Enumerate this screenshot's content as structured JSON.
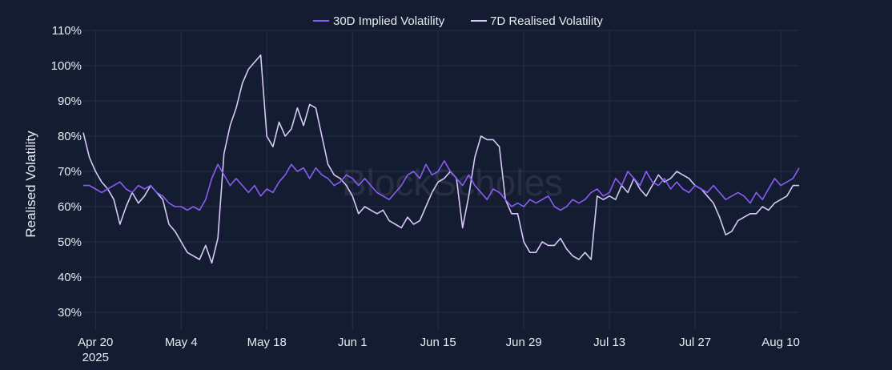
{
  "legend": {
    "series_1": "30D Implied Volatility",
    "series_2": "7D Realised Volatility"
  },
  "watermark": "BlockScholes",
  "chart_data": {
    "type": "line",
    "ylabel": "Realised Volatility",
    "xlabel": "",
    "ylim": [
      25,
      110
    ],
    "xlim": [
      "2025-04-18",
      "2025-08-13"
    ],
    "y_ticks": [
      30,
      40,
      50,
      60,
      70,
      80,
      90,
      100,
      110
    ],
    "y_tick_labels": [
      "30%",
      "40%",
      "50%",
      "60%",
      "70%",
      "80%",
      "90%",
      "100%",
      "110%"
    ],
    "x_ticks": [
      "2025-04-20",
      "2025-05-04",
      "2025-05-18",
      "2025-06-01",
      "2025-06-15",
      "2025-06-29",
      "2025-07-13",
      "2025-07-27",
      "2025-08-10"
    ],
    "x_tick_labels": [
      "Apr 20",
      "May 4",
      "May 18",
      "Jun 1",
      "Jun 15",
      "Jun 29",
      "Jul 13",
      "Jul 27",
      "Aug 10"
    ],
    "x_year_label": "2025",
    "grid": true,
    "legend_position": "top-center",
    "colors": {
      "background": "#131c30",
      "implied": "#8b5cf6",
      "realised": "#d8c8fa",
      "grid": "#26324a"
    },
    "series": [
      {
        "name": "30D Implied Volatility",
        "points": [
          [
            "2025-04-18",
            66
          ],
          [
            "2025-04-19",
            66
          ],
          [
            "2025-04-20",
            65
          ],
          [
            "2025-04-21",
            64
          ],
          [
            "2025-04-22",
            65
          ],
          [
            "2025-04-23",
            66
          ],
          [
            "2025-04-24",
            67
          ],
          [
            "2025-04-25",
            65
          ],
          [
            "2025-04-26",
            64
          ],
          [
            "2025-04-27",
            66
          ],
          [
            "2025-04-28",
            65
          ],
          [
            "2025-04-29",
            66
          ],
          [
            "2025-04-30",
            64
          ],
          [
            "2025-05-01",
            63
          ],
          [
            "2025-05-02",
            61
          ],
          [
            "2025-05-03",
            60
          ],
          [
            "2025-05-04",
            60
          ],
          [
            "2025-05-05",
            59
          ],
          [
            "2025-05-06",
            60
          ],
          [
            "2025-05-07",
            59
          ],
          [
            "2025-05-08",
            62
          ],
          [
            "2025-05-09",
            68
          ],
          [
            "2025-05-10",
            72
          ],
          [
            "2025-05-11",
            69
          ],
          [
            "2025-05-12",
            66
          ],
          [
            "2025-05-13",
            68
          ],
          [
            "2025-05-14",
            66
          ],
          [
            "2025-05-15",
            64
          ],
          [
            "2025-05-16",
            66
          ],
          [
            "2025-05-17",
            63
          ],
          [
            "2025-05-18",
            65
          ],
          [
            "2025-05-19",
            64
          ],
          [
            "2025-05-20",
            67
          ],
          [
            "2025-05-21",
            69
          ],
          [
            "2025-05-22",
            72
          ],
          [
            "2025-05-23",
            70
          ],
          [
            "2025-05-24",
            71
          ],
          [
            "2025-05-25",
            68
          ],
          [
            "2025-05-26",
            71
          ],
          [
            "2025-05-27",
            69
          ],
          [
            "2025-05-28",
            68
          ],
          [
            "2025-05-29",
            66
          ],
          [
            "2025-05-30",
            67
          ],
          [
            "2025-05-31",
            69
          ],
          [
            "2025-06-01",
            68
          ],
          [
            "2025-06-02",
            66
          ],
          [
            "2025-06-03",
            68
          ],
          [
            "2025-06-04",
            66
          ],
          [
            "2025-06-05",
            64
          ],
          [
            "2025-06-06",
            63
          ],
          [
            "2025-06-07",
            62
          ],
          [
            "2025-06-08",
            64
          ],
          [
            "2025-06-09",
            66
          ],
          [
            "2025-06-10",
            69
          ],
          [
            "2025-06-11",
            70
          ],
          [
            "2025-06-12",
            68
          ],
          [
            "2025-06-13",
            72
          ],
          [
            "2025-06-14",
            69
          ],
          [
            "2025-06-15",
            70
          ],
          [
            "2025-06-16",
            73
          ],
          [
            "2025-06-17",
            70
          ],
          [
            "2025-06-18",
            68
          ],
          [
            "2025-06-19",
            66
          ],
          [
            "2025-06-20",
            69
          ],
          [
            "2025-06-21",
            66
          ],
          [
            "2025-06-22",
            64
          ],
          [
            "2025-06-23",
            62
          ],
          [
            "2025-06-24",
            65
          ],
          [
            "2025-06-25",
            64
          ],
          [
            "2025-06-26",
            62
          ],
          [
            "2025-06-27",
            60
          ],
          [
            "2025-06-28",
            61
          ],
          [
            "2025-06-29",
            60
          ],
          [
            "2025-06-30",
            62
          ],
          [
            "2025-07-01",
            61
          ],
          [
            "2025-07-02",
            62
          ],
          [
            "2025-07-03",
            63
          ],
          [
            "2025-07-04",
            60
          ],
          [
            "2025-07-05",
            59
          ],
          [
            "2025-07-06",
            60
          ],
          [
            "2025-07-07",
            62
          ],
          [
            "2025-07-08",
            61
          ],
          [
            "2025-07-09",
            62
          ],
          [
            "2025-07-10",
            64
          ],
          [
            "2025-07-11",
            65
          ],
          [
            "2025-07-12",
            63
          ],
          [
            "2025-07-13",
            64
          ],
          [
            "2025-07-14",
            68
          ],
          [
            "2025-07-15",
            66
          ],
          [
            "2025-07-16",
            70
          ],
          [
            "2025-07-17",
            68
          ],
          [
            "2025-07-18",
            66
          ],
          [
            "2025-07-19",
            70
          ],
          [
            "2025-07-20",
            67
          ],
          [
            "2025-07-21",
            66
          ],
          [
            "2025-07-22",
            68
          ],
          [
            "2025-07-23",
            65
          ],
          [
            "2025-07-24",
            67
          ],
          [
            "2025-07-25",
            65
          ],
          [
            "2025-07-26",
            64
          ],
          [
            "2025-07-27",
            66
          ],
          [
            "2025-07-28",
            65
          ],
          [
            "2025-07-29",
            64
          ],
          [
            "2025-07-30",
            66
          ],
          [
            "2025-07-31",
            64
          ],
          [
            "2025-08-01",
            62
          ],
          [
            "2025-08-02",
            63
          ],
          [
            "2025-08-03",
            64
          ],
          [
            "2025-08-04",
            63
          ],
          [
            "2025-08-05",
            61
          ],
          [
            "2025-08-06",
            64
          ],
          [
            "2025-08-07",
            62
          ],
          [
            "2025-08-08",
            65
          ],
          [
            "2025-08-09",
            68
          ],
          [
            "2025-08-10",
            66
          ],
          [
            "2025-08-11",
            67
          ],
          [
            "2025-08-12",
            68
          ],
          [
            "2025-08-13",
            71
          ]
        ]
      },
      {
        "name": "7D Realised Volatility",
        "points": [
          [
            "2025-04-18",
            81
          ],
          [
            "2025-04-19",
            74
          ],
          [
            "2025-04-20",
            70
          ],
          [
            "2025-04-21",
            67
          ],
          [
            "2025-04-22",
            65
          ],
          [
            "2025-04-23",
            62
          ],
          [
            "2025-04-24",
            55
          ],
          [
            "2025-04-25",
            60
          ],
          [
            "2025-04-26",
            64
          ],
          [
            "2025-04-27",
            61
          ],
          [
            "2025-04-28",
            63
          ],
          [
            "2025-04-29",
            66
          ],
          [
            "2025-04-30",
            64
          ],
          [
            "2025-05-01",
            62
          ],
          [
            "2025-05-02",
            55
          ],
          [
            "2025-05-03",
            53
          ],
          [
            "2025-05-04",
            50
          ],
          [
            "2025-05-05",
            47
          ],
          [
            "2025-05-06",
            46
          ],
          [
            "2025-05-07",
            45
          ],
          [
            "2025-05-08",
            49
          ],
          [
            "2025-05-09",
            44
          ],
          [
            "2025-05-10",
            51
          ],
          [
            "2025-05-11",
            75
          ],
          [
            "2025-05-12",
            83
          ],
          [
            "2025-05-13",
            88
          ],
          [
            "2025-05-14",
            95
          ],
          [
            "2025-05-15",
            99
          ],
          [
            "2025-05-16",
            101
          ],
          [
            "2025-05-17",
            103
          ],
          [
            "2025-05-18",
            80
          ],
          [
            "2025-05-19",
            77
          ],
          [
            "2025-05-20",
            84
          ],
          [
            "2025-05-21",
            80
          ],
          [
            "2025-05-22",
            82
          ],
          [
            "2025-05-23",
            88
          ],
          [
            "2025-05-24",
            83
          ],
          [
            "2025-05-25",
            89
          ],
          [
            "2025-05-26",
            88
          ],
          [
            "2025-05-27",
            80
          ],
          [
            "2025-05-28",
            72
          ],
          [
            "2025-05-29",
            69
          ],
          [
            "2025-05-30",
            68
          ],
          [
            "2025-05-31",
            66
          ],
          [
            "2025-06-01",
            63
          ],
          [
            "2025-06-02",
            58
          ],
          [
            "2025-06-03",
            60
          ],
          [
            "2025-06-04",
            59
          ],
          [
            "2025-06-05",
            58
          ],
          [
            "2025-06-06",
            59
          ],
          [
            "2025-06-07",
            56
          ],
          [
            "2025-06-08",
            55
          ],
          [
            "2025-06-09",
            54
          ],
          [
            "2025-06-10",
            57
          ],
          [
            "2025-06-11",
            55
          ],
          [
            "2025-06-12",
            56
          ],
          [
            "2025-06-13",
            60
          ],
          [
            "2025-06-14",
            64
          ],
          [
            "2025-06-15",
            67
          ],
          [
            "2025-06-16",
            68
          ],
          [
            "2025-06-17",
            70
          ],
          [
            "2025-06-18",
            68
          ],
          [
            "2025-06-19",
            54
          ],
          [
            "2025-06-20",
            63
          ],
          [
            "2025-06-21",
            74
          ],
          [
            "2025-06-22",
            80
          ],
          [
            "2025-06-23",
            79
          ],
          [
            "2025-06-24",
            79
          ],
          [
            "2025-06-25",
            77
          ],
          [
            "2025-06-26",
            62
          ],
          [
            "2025-06-27",
            58
          ],
          [
            "2025-06-28",
            58
          ],
          [
            "2025-06-29",
            50
          ],
          [
            "2025-06-30",
            47
          ],
          [
            "2025-07-01",
            47
          ],
          [
            "2025-07-02",
            50
          ],
          [
            "2025-07-03",
            49
          ],
          [
            "2025-07-04",
            49
          ],
          [
            "2025-07-05",
            51
          ],
          [
            "2025-07-06",
            48
          ],
          [
            "2025-07-07",
            46
          ],
          [
            "2025-07-08",
            45
          ],
          [
            "2025-07-09",
            47
          ],
          [
            "2025-07-10",
            45
          ],
          [
            "2025-07-11",
            63
          ],
          [
            "2025-07-12",
            62
          ],
          [
            "2025-07-13",
            63
          ],
          [
            "2025-07-14",
            62
          ],
          [
            "2025-07-15",
            66
          ],
          [
            "2025-07-16",
            64
          ],
          [
            "2025-07-17",
            68
          ],
          [
            "2025-07-18",
            65
          ],
          [
            "2025-07-19",
            63
          ],
          [
            "2025-07-20",
            66
          ],
          [
            "2025-07-21",
            69
          ],
          [
            "2025-07-22",
            67
          ],
          [
            "2025-07-23",
            68
          ],
          [
            "2025-07-24",
            70
          ],
          [
            "2025-07-25",
            69
          ],
          [
            "2025-07-26",
            68
          ],
          [
            "2025-07-27",
            66
          ],
          [
            "2025-07-28",
            65
          ],
          [
            "2025-07-29",
            63
          ],
          [
            "2025-07-30",
            61
          ],
          [
            "2025-07-31",
            57
          ],
          [
            "2025-08-01",
            52
          ],
          [
            "2025-08-02",
            53
          ],
          [
            "2025-08-03",
            56
          ],
          [
            "2025-08-04",
            57
          ],
          [
            "2025-08-05",
            58
          ],
          [
            "2025-08-06",
            58
          ],
          [
            "2025-08-07",
            60
          ],
          [
            "2025-08-08",
            59
          ],
          [
            "2025-08-09",
            61
          ],
          [
            "2025-08-10",
            62
          ],
          [
            "2025-08-11",
            63
          ],
          [
            "2025-08-12",
            66
          ],
          [
            "2025-08-13",
            66
          ]
        ]
      }
    ]
  }
}
